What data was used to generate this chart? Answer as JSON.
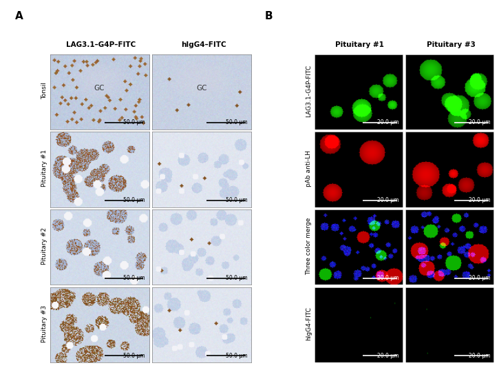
{
  "panel_A_label": "A",
  "panel_B_label": "B",
  "col_headers_A": [
    "LAG3.1–G4P–FITC",
    "hIgG4–FITC"
  ],
  "row_headers_A": [
    "Tonsil",
    "Pituitary #1",
    "Pituitary #2",
    "Pituitary #3"
  ],
  "col_headers_B": [
    "Pituitary #1",
    "Pituitary #3"
  ],
  "row_headers_B": [
    "LAG3.1-G4P-FITC",
    "pAb anti-LH",
    "Three color merge",
    "hIgG4-FITC"
  ],
  "scale_bar_A": "50.0 μm",
  "scale_bar_B": "20.0 μm",
  "GC_label": "GC",
  "bg_color": "#ffffff",
  "header_fontsize": 7.5,
  "row_header_fontsize": 6.5,
  "label_fontsize": 9,
  "scale_bar_fontsize": 5.5
}
